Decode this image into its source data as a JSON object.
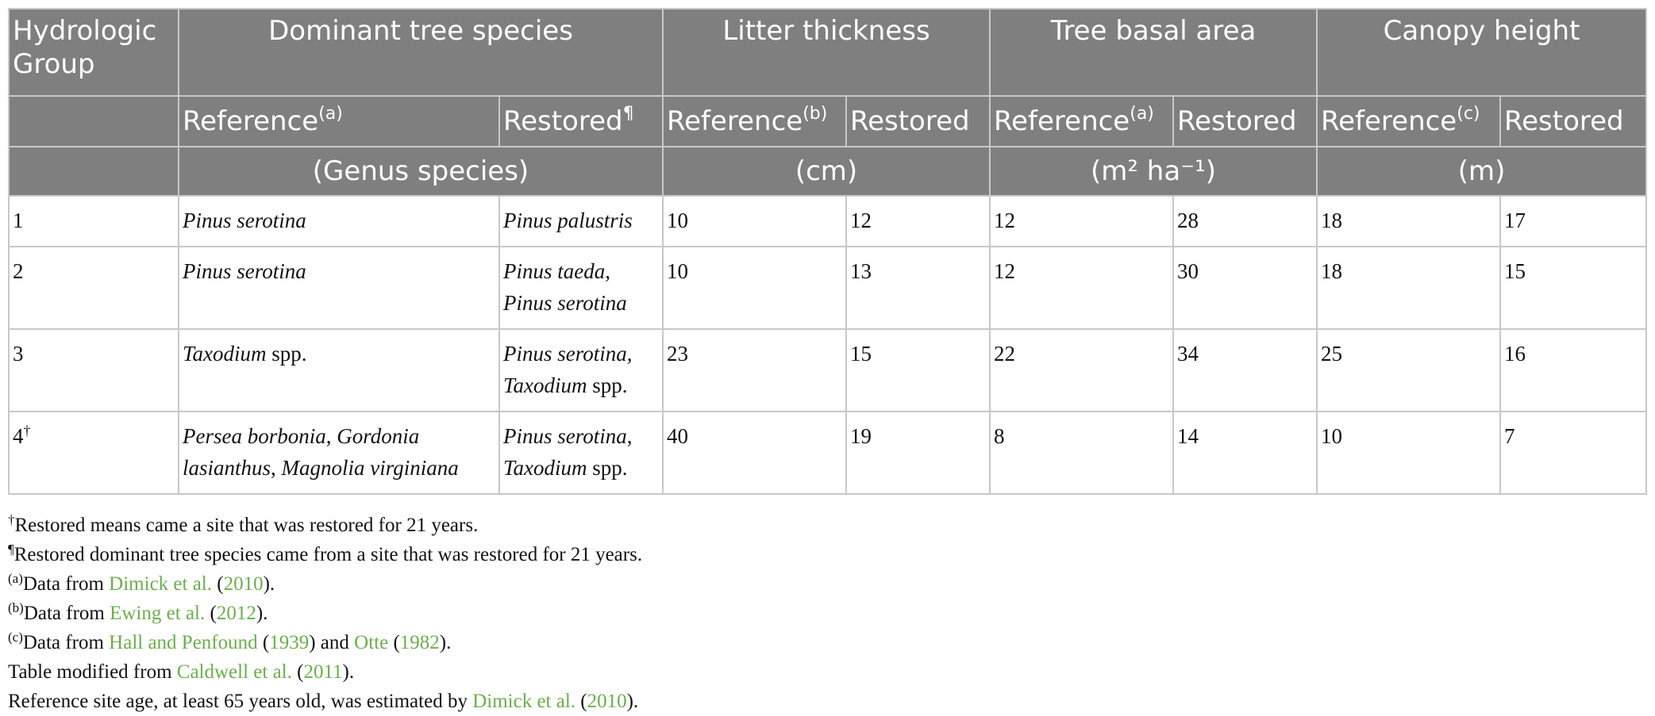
{
  "header": {
    "group": "Hydrologic Group",
    "species": "Dominant tree species",
    "litter": "Litter thickness",
    "basal": "Tree basal area",
    "canopy": "Canopy height",
    "reference": "Reference",
    "restored": "Restored",
    "sup_a": "(a)",
    "sup_b": "(b)",
    "sup_c": "(c)",
    "sup_pilcrow": "¶",
    "unit_species": "(Genus species)",
    "unit_litter": "(cm)",
    "unit_basal": "(m² ha⁻¹)",
    "unit_canopy": "(m)"
  },
  "rows": [
    {
      "group": "1",
      "group_sup": "",
      "ref_species": [
        {
          "t": "Pinus serotina",
          "i": true
        }
      ],
      "res_species": [
        {
          "t": "Pinus palustris",
          "i": true
        }
      ],
      "litter_ref": "10",
      "litter_res": "12",
      "basal_ref": "12",
      "basal_res": "28",
      "canopy_ref": "18",
      "canopy_res": "17"
    },
    {
      "group": "2",
      "group_sup": "",
      "ref_species": [
        {
          "t": "Pinus serotina",
          "i": true
        }
      ],
      "res_species": [
        {
          "t": "Pinus taeda",
          "i": true
        },
        {
          "t": ",",
          "i": false
        },
        {
          "t": " Pinus serotina",
          "i": true
        }
      ],
      "litter_ref": "10",
      "litter_res": "13",
      "basal_ref": "12",
      "basal_res": "30",
      "canopy_ref": "18",
      "canopy_res": "15"
    },
    {
      "group": "3",
      "group_sup": "",
      "ref_species": [
        {
          "t": "Taxodium",
          "i": true
        },
        {
          "t": " spp.",
          "i": false
        }
      ],
      "res_species": [
        {
          "t": "Pinus serotina",
          "i": true
        },
        {
          "t": ",",
          "i": false
        },
        {
          "t": " Taxodium",
          "i": true
        },
        {
          "t": " spp.",
          "i": false
        }
      ],
      "litter_ref": "23",
      "litter_res": "15",
      "basal_ref": "22",
      "basal_res": "34",
      "canopy_ref": "25",
      "canopy_res": "16"
    },
    {
      "group": "4",
      "group_sup": "†",
      "ref_species": [
        {
          "t": "Persea borbonia",
          "i": true
        },
        {
          "t": ",",
          "i": false
        },
        {
          "t": " Gordonia lasianthus",
          "i": true
        },
        {
          "t": ",",
          "i": false
        },
        {
          "t": " Magnolia virginiana",
          "i": true
        }
      ],
      "res_species": [
        {
          "t": "Pinus serotina",
          "i": true
        },
        {
          "t": ",",
          "i": false
        },
        {
          "t": " Taxodium",
          "i": true
        },
        {
          "t": " spp.",
          "i": false
        }
      ],
      "litter_ref": "40",
      "litter_res": "19",
      "basal_ref": "8",
      "basal_res": "14",
      "canopy_ref": "10",
      "canopy_res": "7"
    }
  ],
  "notes": {
    "n1_mark": "†",
    "n1_text": "Restored means came a site that was restored for 21 years.",
    "n2_mark": "¶",
    "n2_text": "Restored dominant tree species came from a site that was restored for 21 years.",
    "n3_mark": "(a)",
    "n3_pre": "Data from ",
    "n3_ref": "Dimick et al.",
    "n3_open": " (",
    "n3_year": "2010",
    "n3_close": ").",
    "n4_mark": "(b)",
    "n4_pre": "Data from ",
    "n4_ref": "Ewing et al.",
    "n4_open": " (",
    "n4_year": "2012",
    "n4_close": ").",
    "n5_mark": "(c)",
    "n5_pre": "Data from ",
    "n5_ref1": "Hall and Penfound",
    "n5_open1": " (",
    "n5_year1": "1939",
    "n5_mid": ") and ",
    "n5_ref2": "Otte",
    "n5_open2": " (",
    "n5_year2": "1982",
    "n5_close": ").",
    "n6_pre": "Table modified from ",
    "n6_ref": "Caldwell et al.",
    "n6_open": " (",
    "n6_year": "2011",
    "n6_close": ").",
    "n7_pre": "Reference site age, at least 65 years old, was estimated by ",
    "n7_ref": "Dimick et al.",
    "n7_open": " (",
    "n7_year": "2010",
    "n7_close": ")."
  }
}
